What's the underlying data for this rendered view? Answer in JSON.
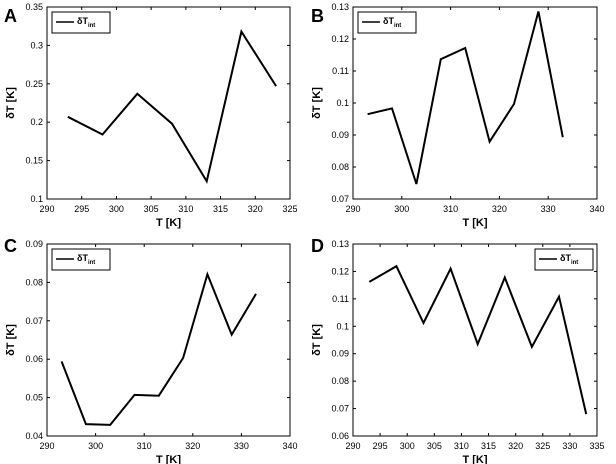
{
  "chart_data": [
    {
      "panel": "A",
      "type": "line",
      "xlabel": "T  [K]",
      "ylabel": "δT  [K]",
      "xlim": [
        290,
        325
      ],
      "ylim": [
        0.1,
        0.35
      ],
      "xticks": [
        "290",
        "295",
        "300",
        "305",
        "310",
        "315",
        "320",
        "325"
      ],
      "yticks": [
        "0.1",
        "0.15",
        "0.2",
        "0.25",
        "0.3",
        "0.35"
      ],
      "legend_position": "top-left",
      "series": [
        {
          "name": "δT",
          "name_sub": "int",
          "x": [
            293,
            298,
            303,
            308,
            313,
            318,
            323
          ],
          "values": [
            0.207,
            0.184,
            0.237,
            0.198,
            0.123,
            0.318,
            0.247
          ]
        }
      ]
    },
    {
      "panel": "B",
      "type": "line",
      "xlabel": "T  [K]",
      "ylabel": "δT  [K]",
      "xlim": [
        290,
        340
      ],
      "ylim": [
        0.07,
        0.13
      ],
      "xticks": [
        "290",
        "300",
        "310",
        "320",
        "330",
        "340"
      ],
      "yticks": [
        "0.07",
        "0.08",
        "0.09",
        "0.1",
        "0.11",
        "0.12",
        "0.13"
      ],
      "legend_position": "top-left",
      "series": [
        {
          "name": "δT",
          "name_sub": "int",
          "x": [
            293,
            298,
            303,
            308,
            313,
            318,
            323,
            328,
            333
          ],
          "values": [
            0.0965,
            0.0983,
            0.0747,
            0.1137,
            0.1172,
            0.0879,
            0.0997,
            0.1286,
            0.0893
          ]
        }
      ]
    },
    {
      "panel": "C",
      "type": "line",
      "xlabel": "T  [K]",
      "ylabel": "δT  [K]",
      "xlim": [
        290,
        340
      ],
      "ylim": [
        0.04,
        0.09
      ],
      "xticks": [
        "290",
        "300",
        "310",
        "320",
        "330",
        "340"
      ],
      "yticks": [
        "0.04",
        "0.05",
        "0.06",
        "0.07",
        "0.08",
        "0.09"
      ],
      "legend_position": "top-left",
      "series": [
        {
          "name": "δT",
          "name_sub": "int",
          "x": [
            293,
            298,
            303,
            308,
            313,
            318,
            323,
            328,
            333
          ],
          "values": [
            0.0594,
            0.0431,
            0.0429,
            0.0507,
            0.0505,
            0.0603,
            0.0821,
            0.0664,
            0.077
          ]
        }
      ]
    },
    {
      "panel": "D",
      "type": "line",
      "xlabel": "T  [K]",
      "ylabel": "δT  [K]",
      "xlim": [
        290,
        335
      ],
      "ylim": [
        0.06,
        0.13
      ],
      "xticks": [
        "290",
        "295",
        "300",
        "305",
        "310",
        "315",
        "320",
        "325",
        "330",
        "335"
      ],
      "yticks": [
        "0.06",
        "0.07",
        "0.08",
        "0.09",
        "0.1",
        "0.11",
        "0.12",
        "0.13"
      ],
      "legend_position": "top-right",
      "series": [
        {
          "name": "δT",
          "name_sub": "int",
          "x": [
            293,
            298,
            303,
            308,
            313,
            318,
            323,
            328,
            333
          ],
          "values": [
            0.1162,
            0.1219,
            0.1012,
            0.121,
            0.0935,
            0.1178,
            0.0925,
            0.1108,
            0.068
          ]
        }
      ]
    }
  ]
}
